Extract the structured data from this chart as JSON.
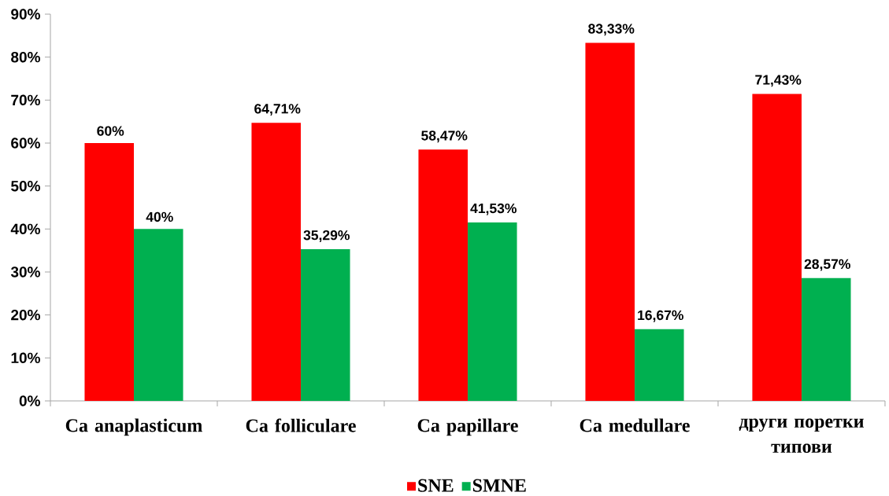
{
  "chart_data": {
    "type": "bar",
    "categories": [
      "Ca anaplasticum",
      "Ca folliculare",
      "Ca papillare",
      "Ca medullare",
      "други поретки типови"
    ],
    "series": [
      {
        "name": "SNE",
        "color": "#ff0000",
        "values": [
          60,
          64.71,
          58.47,
          83.33,
          71.43
        ],
        "value_labels": [
          "60%",
          "64,71%",
          "58,47%",
          "83,33%",
          "71,43%"
        ]
      },
      {
        "name": "SMNE",
        "color": "#00b050",
        "values": [
          40,
          35.29,
          41.53,
          16.67,
          28.57
        ],
        "value_labels": [
          "40%",
          "35,29%",
          "41,53%",
          "16,67%",
          "28,57%"
        ]
      }
    ],
    "ylim": [
      0,
      90
    ],
    "yticks": [
      {
        "value": 0,
        "label": "0%"
      },
      {
        "value": 10,
        "label": "10%"
      },
      {
        "value": 20,
        "label": "20%"
      },
      {
        "value": 30,
        "label": "30%"
      },
      {
        "value": 40,
        "label": "40%"
      },
      {
        "value": 50,
        "label": "50%"
      },
      {
        "value": 60,
        "label": "60%"
      },
      {
        "value": 70,
        "label": "70%"
      },
      {
        "value": 80,
        "label": "80%"
      },
      {
        "value": 90,
        "label": "90%"
      }
    ],
    "legend": "bottom"
  }
}
